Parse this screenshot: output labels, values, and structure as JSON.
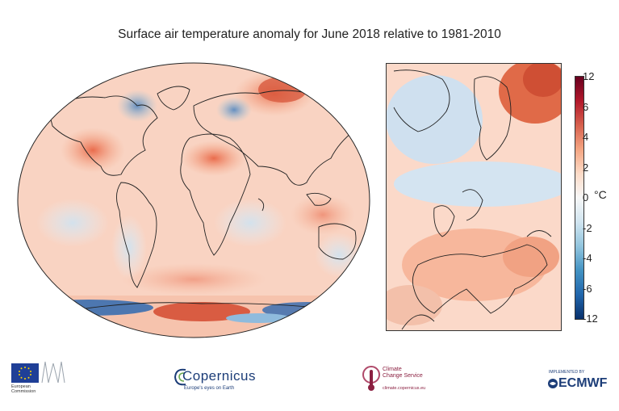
{
  "title": "Surface air temperature anomaly for June 2018 relative to 1981-2010",
  "colorbar": {
    "unit": "°C",
    "ticks": [
      "12",
      "6",
      "4",
      "2",
      "0",
      "-2",
      "-4",
      "-6",
      "-12"
    ],
    "colors": [
      "#08306b",
      "#2166ac",
      "#4393c3",
      "#92c5de",
      "#d1e5f0",
      "#f7f7f7",
      "#fddbc7",
      "#f4a582",
      "#d6604d",
      "#b2182b",
      "#67001f"
    ]
  },
  "logos": {
    "eu": {
      "lines": [
        "European",
        "Commission"
      ]
    },
    "copernicus": {
      "name": "Copernicus",
      "sub": "Europe's eyes on Earth"
    },
    "c3s": {
      "lines": [
        "Climate",
        "Change Service"
      ],
      "url": "climate.copernicus.eu"
    },
    "ecmwf": {
      "top": "IMPLEMENTED BY",
      "name": "ECMWF"
    }
  }
}
